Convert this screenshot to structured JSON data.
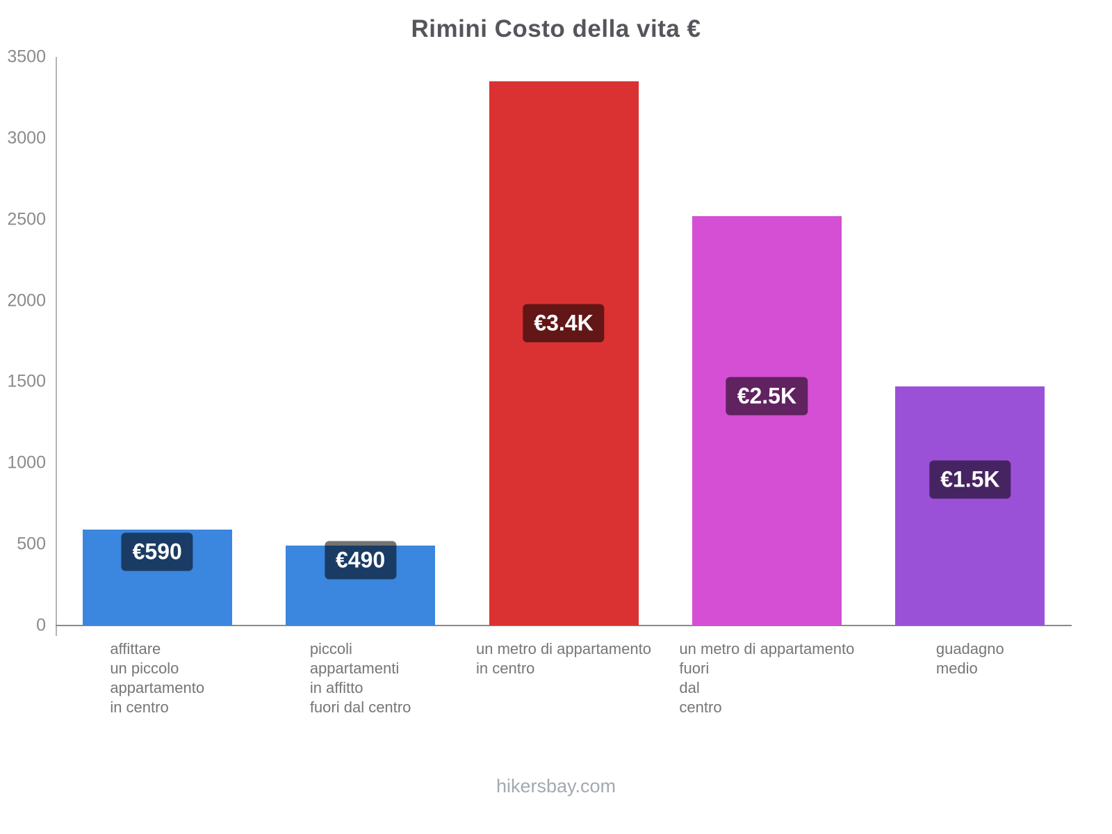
{
  "footer": "hikersbay.com",
  "chart_data": {
    "type": "bar",
    "title": "Rimini Costo della vita €",
    "xlabel": "",
    "ylabel": "",
    "ylim": [
      0,
      3500
    ],
    "ytick_step": 500,
    "grid": false,
    "legend": "none",
    "categories": [
      "affittare un piccolo appartamento in centro",
      "piccoli appartamenti in affitto fuori dal centro",
      "un metro di appartamento in centro",
      "un metro di appartamento fuori dal centro",
      "guadagno medio"
    ],
    "category_label_lines": [
      [
        "affittare",
        "un piccolo",
        "appartamento",
        "in centro"
      ],
      [
        "piccoli",
        "appartamenti",
        "in affitto",
        "fuori dal centro"
      ],
      [
        "un metro di appartamento",
        "in centro"
      ],
      [
        "un metro di appartamento",
        "fuori",
        "dal",
        "centro"
      ],
      [
        "guadagno",
        "medio"
      ]
    ],
    "values": [
      590,
      490,
      3350,
      2520,
      1470
    ],
    "value_labels": [
      "€590",
      "€490",
      "€3.4K",
      "€2.5K",
      "€1.5K"
    ],
    "bar_colors": [
      "#3b86de",
      "#3b86de",
      "#da3232",
      "#d44fd4",
      "#9b50d8"
    ],
    "value_label_bg": "rgba(0,0,0,0.55)",
    "value_label_pos_fraction": [
      0.77,
      0.82,
      0.555,
      0.56,
      0.61
    ]
  }
}
